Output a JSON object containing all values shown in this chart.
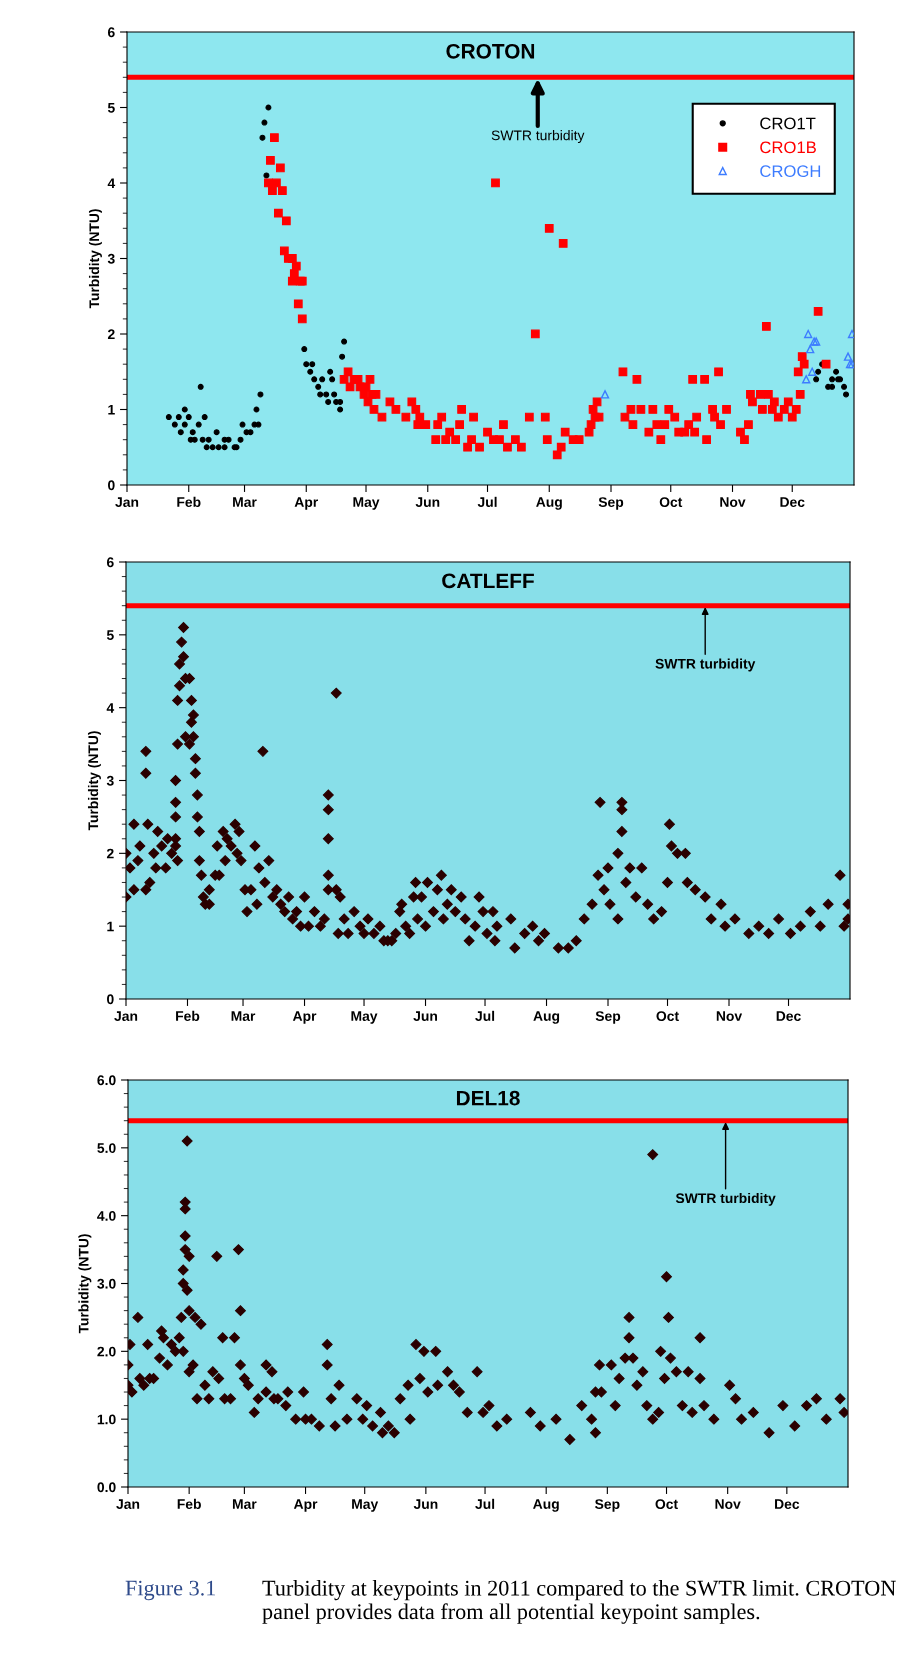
{
  "chart_data": [
    {
      "type": "scatter",
      "title": "CROTON",
      "ylabel": "Turbidity (NTU)",
      "xlim": [
        "2011-01-01",
        "2012-01-01"
      ],
      "xticks": [
        {
          "value": "2011-01-01",
          "label": "Jan"
        },
        {
          "value": "2011-02-01",
          "label": "Feb"
        },
        {
          "value": "2011-03-01",
          "label": "Mar"
        },
        {
          "value": "2011-04-01",
          "label": "Apr"
        },
        {
          "value": "2011-05-01",
          "label": "May"
        },
        {
          "value": "2011-06-01",
          "label": "Jun"
        },
        {
          "value": "2011-07-01",
          "label": "Jul"
        },
        {
          "value": "2011-08-01",
          "label": "Aug"
        },
        {
          "value": "2011-09-01",
          "label": "Sep"
        },
        {
          "value": "2011-10-01",
          "label": "Oct"
        },
        {
          "value": "2011-11-01",
          "label": "Nov"
        },
        {
          "value": "2011-12-01",
          "label": "Dec"
        }
      ],
      "ylim": [
        0,
        6
      ],
      "yticks": [
        0,
        1,
        2,
        3,
        4,
        5,
        6
      ],
      "grid": false,
      "legend": "top right",
      "ref_lines": [
        {
          "axis": "y",
          "value": 5.4,
          "color": "#ff0000",
          "label": "SWTR turbidity"
        }
      ],
      "series": [
        {
          "name": "CRO1T",
          "color": "#000000",
          "marker": "circle",
          "x": [
            "2011-01-22",
            "2011-01-25",
            "2011-01-27",
            "2011-01-28",
            "2011-01-30",
            "2011-01-30",
            "2011-02-01",
            "2011-02-02",
            "2011-02-03",
            "2011-02-04",
            "2011-02-06",
            "2011-02-07",
            "2011-02-08",
            "2011-02-09",
            "2011-02-10",
            "2011-02-11",
            "2011-02-13",
            "2011-02-15",
            "2011-02-16",
            "2011-02-19",
            "2011-02-19",
            "2011-02-21",
            "2011-02-24",
            "2011-02-25",
            "2011-02-27",
            "2011-02-28",
            "2011-03-02",
            "2011-03-04",
            "2011-03-06",
            "2011-03-07",
            "2011-03-08",
            "2011-03-09",
            "2011-03-10",
            "2011-03-11",
            "2011-03-12",
            "2011-03-13",
            "2011-03-31",
            "2011-04-01",
            "2011-04-03",
            "2011-04-04",
            "2011-04-05",
            "2011-04-07",
            "2011-04-08",
            "2011-04-09",
            "2011-04-11",
            "2011-04-12",
            "2011-04-13",
            "2011-04-14",
            "2011-04-15",
            "2011-04-16",
            "2011-04-18",
            "2011-04-18",
            "2011-04-19",
            "2011-04-20",
            "2011-12-13",
            "2011-12-14",
            "2011-12-16",
            "2011-12-19",
            "2011-12-21",
            "2011-12-21",
            "2011-12-23",
            "2011-12-24",
            "2011-12-25",
            "2011-12-27",
            "2011-12-28"
          ],
          "values": [
            0.9,
            0.8,
            0.9,
            0.7,
            1.0,
            0.8,
            0.9,
            0.6,
            0.7,
            0.6,
            0.8,
            1.3,
            0.6,
            0.9,
            0.5,
            0.6,
            0.5,
            0.7,
            0.5,
            0.5,
            0.6,
            0.6,
            0.5,
            0.5,
            0.6,
            0.8,
            0.7,
            0.7,
            0.8,
            1.0,
            0.8,
            1.2,
            4.6,
            4.8,
            4.1,
            5.0,
            1.8,
            1.6,
            1.5,
            1.6,
            1.4,
            1.3,
            1.2,
            1.4,
            1.2,
            1.1,
            1.5,
            1.4,
            1.2,
            1.1,
            1.0,
            1.1,
            1.7,
            1.9,
            1.4,
            1.5,
            1.6,
            1.3,
            1.3,
            1.4,
            1.5,
            1.4,
            1.4,
            1.3,
            1.2
          ]
        },
        {
          "name": "CRO1B",
          "color": "#ff0000",
          "marker": "square",
          "x": [
            "2011-03-13",
            "2011-03-14",
            "2011-03-15",
            "2011-03-16",
            "2011-03-17",
            "2011-03-18",
            "2011-03-19",
            "2011-03-20",
            "2011-03-21",
            "2011-03-22",
            "2011-03-23",
            "2011-03-25",
            "2011-03-25",
            "2011-03-26",
            "2011-03-27",
            "2011-03-28",
            "2011-03-29",
            "2011-03-30",
            "2011-03-30",
            "2011-04-20",
            "2011-04-22",
            "2011-04-23",
            "2011-04-25",
            "2011-04-27",
            "2011-04-28",
            "2011-04-30",
            "2011-05-01",
            "2011-05-02",
            "2011-05-03",
            "2011-05-04",
            "2011-05-05",
            "2011-05-06",
            "2011-05-09",
            "2011-05-13",
            "2011-05-16",
            "2011-05-21",
            "2011-05-24",
            "2011-05-26",
            "2011-05-27",
            "2011-05-28",
            "2011-05-31",
            "2011-06-05",
            "2011-06-06",
            "2011-06-08",
            "2011-06-10",
            "2011-06-12",
            "2011-06-15",
            "2011-06-17",
            "2011-06-18",
            "2011-06-21",
            "2011-06-23",
            "2011-06-24",
            "2011-06-27",
            "2011-07-01",
            "2011-07-04",
            "2011-07-05",
            "2011-07-07",
            "2011-07-09",
            "2011-07-11",
            "2011-07-15",
            "2011-07-18",
            "2011-07-22",
            "2011-07-25",
            "2011-07-30",
            "2011-07-31",
            "2011-08-01",
            "2011-08-05",
            "2011-08-07",
            "2011-08-08",
            "2011-08-09",
            "2011-08-13",
            "2011-08-16",
            "2011-08-21",
            "2011-08-22",
            "2011-08-23",
            "2011-08-24",
            "2011-08-25",
            "2011-08-26",
            "2011-09-07",
            "2011-09-08",
            "2011-09-11",
            "2011-09-12",
            "2011-09-14",
            "2011-09-16",
            "2011-09-20",
            "2011-09-22",
            "2011-09-24",
            "2011-09-26",
            "2011-09-28",
            "2011-09-30",
            "2011-10-03",
            "2011-10-05",
            "2011-10-08",
            "2011-10-10",
            "2011-10-12",
            "2011-10-13",
            "2011-10-14",
            "2011-10-18",
            "2011-10-19",
            "2011-10-22",
            "2011-10-23",
            "2011-10-25",
            "2011-10-26",
            "2011-10-29",
            "2011-11-05",
            "2011-11-07",
            "2011-11-09",
            "2011-11-10",
            "2011-11-11",
            "2011-11-15",
            "2011-11-16",
            "2011-11-18",
            "2011-11-19",
            "2011-11-21",
            "2011-11-22",
            "2011-11-24",
            "2011-11-27",
            "2011-11-29",
            "2011-12-01",
            "2011-12-03",
            "2011-12-04",
            "2011-12-05",
            "2011-12-06",
            "2011-12-07",
            "2011-12-14",
            "2011-12-18"
          ],
          "values": [
            4.0,
            4.3,
            3.9,
            4.6,
            4.0,
            3.6,
            4.2,
            3.9,
            3.1,
            3.5,
            3.0,
            3.0,
            2.7,
            2.8,
            2.9,
            2.4,
            2.7,
            2.7,
            2.2,
            1.4,
            1.5,
            1.3,
            1.4,
            1.4,
            1.3,
            1.2,
            1.3,
            1.1,
            1.4,
            1.2,
            1.0,
            1.2,
            0.9,
            1.1,
            1.0,
            0.9,
            1.1,
            1.0,
            0.8,
            0.9,
            0.8,
            0.6,
            0.8,
            0.9,
            0.6,
            0.7,
            0.6,
            0.8,
            1.0,
            0.5,
            0.6,
            0.9,
            0.5,
            0.7,
            0.6,
            4.0,
            0.6,
            0.8,
            0.5,
            0.6,
            0.5,
            0.9,
            2.0,
            0.9,
            0.6,
            3.4,
            0.4,
            0.5,
            3.2,
            0.7,
            0.6,
            0.6,
            0.7,
            0.8,
            1.0,
            0.9,
            1.1,
            0.9,
            1.5,
            0.9,
            1.0,
            0.8,
            1.4,
            1.0,
            0.7,
            1.0,
            0.8,
            0.6,
            0.8,
            1.0,
            0.9,
            0.7,
            0.7,
            0.8,
            1.4,
            0.7,
            0.9,
            1.4,
            0.6,
            1.0,
            0.9,
            1.5,
            0.8,
            1.0,
            0.7,
            0.6,
            0.8,
            1.2,
            1.1,
            1.2,
            1.0,
            2.1,
            1.2,
            1.0,
            1.1,
            0.9,
            1.0,
            1.1,
            0.9,
            1.0,
            1.5,
            1.2,
            1.7,
            1.6,
            2.3,
            1.6
          ]
        },
        {
          "name": "CROGH",
          "color": "#3d7cff",
          "marker": "triangle",
          "x": [
            "2011-08-29",
            "2011-12-08",
            "2011-12-09",
            "2011-12-10",
            "2011-12-11",
            "2011-12-12",
            "2011-12-13",
            "2011-12-29",
            "2011-12-30",
            "2011-12-31",
            "2011-12-31"
          ],
          "values": [
            1.2,
            1.4,
            2.0,
            1.8,
            1.5,
            1.9,
            1.9,
            1.7,
            1.6,
            1.6,
            2.0
          ]
        }
      ]
    },
    {
      "type": "scatter",
      "title": "CATLEFF",
      "ylabel": "Turbidity (NTU)",
      "xlim": [
        "2011-01-01",
        "2012-01-01"
      ],
      "xticks": [
        {
          "value": "2011-01-01",
          "label": "Jan"
        },
        {
          "value": "2011-02-01",
          "label": "Feb"
        },
        {
          "value": "2011-03-01",
          "label": "Mar"
        },
        {
          "value": "2011-04-01",
          "label": "Apr"
        },
        {
          "value": "2011-05-01",
          "label": "May"
        },
        {
          "value": "2011-06-01",
          "label": "Jun"
        },
        {
          "value": "2011-07-01",
          "label": "Jul"
        },
        {
          "value": "2011-08-01",
          "label": "Aug"
        },
        {
          "value": "2011-09-01",
          "label": "Sep"
        },
        {
          "value": "2011-10-01",
          "label": "Oct"
        },
        {
          "value": "2011-11-01",
          "label": "Nov"
        },
        {
          "value": "2011-12-01",
          "label": "Dec"
        }
      ],
      "ylim": [
        0,
        6
      ],
      "yticks": [
        0,
        1,
        2,
        3,
        4,
        5,
        6
      ],
      "grid": false,
      "marker": "diamond",
      "ref_lines": [
        {
          "axis": "y",
          "value": 5.4,
          "color": "#ff0000",
          "label": "SWTR turbidity"
        }
      ],
      "series": [
        {
          "color": "#2a0000",
          "x": [
            "2011-01-01",
            "2011-01-01",
            "2011-01-03",
            "2011-01-05",
            "2011-01-05",
            "2011-01-07",
            "2011-01-08",
            "2011-01-11",
            "2011-01-11",
            "2011-01-11",
            "2011-01-12",
            "2011-01-13",
            "2011-01-15",
            "2011-01-16",
            "2011-01-17",
            "2011-01-19",
            "2011-01-21",
            "2011-01-22",
            "2011-01-24",
            "2011-01-26",
            "2011-01-27",
            "2011-01-26",
            "2011-01-26",
            "2011-01-26",
            "2011-01-26",
            "2011-01-27",
            "2011-01-27",
            "2011-01-28",
            "2011-01-28",
            "2011-01-29",
            "2011-01-30",
            "2011-01-30",
            "2011-01-31",
            "2011-01-31",
            "2011-02-02",
            "2011-02-02",
            "2011-02-03",
            "2011-02-03",
            "2011-02-04",
            "2011-02-04",
            "2011-02-05",
            "2011-02-05",
            "2011-02-06",
            "2011-02-06",
            "2011-02-07",
            "2011-02-07",
            "2011-02-08",
            "2011-02-09",
            "2011-02-10",
            "2011-02-12",
            "2011-02-12",
            "2011-02-15",
            "2011-02-16",
            "2011-02-17",
            "2011-02-19",
            "2011-02-20",
            "2011-02-21",
            "2011-02-23",
            "2011-02-25",
            "2011-02-26",
            "2011-02-27",
            "2011-02-28",
            "2011-03-02",
            "2011-03-03",
            "2011-03-05",
            "2011-03-07",
            "2011-03-08",
            "2011-03-09",
            "2011-03-11",
            "2011-03-12",
            "2011-03-14",
            "2011-03-16",
            "2011-03-18",
            "2011-03-20",
            "2011-03-22",
            "2011-03-24",
            "2011-03-26",
            "2011-03-28",
            "2011-03-30",
            "2011-04-01",
            "2011-04-03",
            "2011-04-06",
            "2011-04-09",
            "2011-04-11",
            "2011-04-13",
            "2011-04-13",
            "2011-04-13",
            "2011-04-13",
            "2011-04-13",
            "2011-04-17",
            "2011-04-17",
            "2011-04-18",
            "2011-04-19",
            "2011-04-21",
            "2011-04-23",
            "2011-04-26",
            "2011-04-29",
            "2011-05-01",
            "2011-05-03",
            "2011-05-06",
            "2011-05-09",
            "2011-05-11",
            "2011-05-13",
            "2011-05-15",
            "2011-05-17",
            "2011-05-19",
            "2011-05-20",
            "2011-05-22",
            "2011-05-24",
            "2011-05-26",
            "2011-05-27",
            "2011-05-28",
            "2011-05-30",
            "2011-06-01",
            "2011-06-02",
            "2011-06-05",
            "2011-06-07",
            "2011-06-09",
            "2011-06-10",
            "2011-06-12",
            "2011-06-14",
            "2011-06-16",
            "2011-06-19",
            "2011-06-21",
            "2011-06-23",
            "2011-06-26",
            "2011-06-28",
            "2011-06-30",
            "2011-07-02",
            "2011-07-05",
            "2011-07-06",
            "2011-07-07",
            "2011-07-14",
            "2011-07-16",
            "2011-07-21",
            "2011-07-25",
            "2011-07-28",
            "2011-07-31",
            "2011-08-07",
            "2011-08-12",
            "2011-08-16",
            "2011-08-20",
            "2011-08-24",
            "2011-08-27",
            "2011-08-28",
            "2011-08-30",
            "2011-09-01",
            "2011-09-02",
            "2011-09-06",
            "2011-09-06",
            "2011-09-08",
            "2011-09-08",
            "2011-09-08",
            "2011-09-10",
            "2011-09-12",
            "2011-09-15",
            "2011-09-18",
            "2011-09-21",
            "2011-09-24",
            "2011-09-28",
            "2011-10-01",
            "2011-10-02",
            "2011-10-03",
            "2011-10-06",
            "2011-10-10",
            "2011-10-11",
            "2011-10-15",
            "2011-10-20",
            "2011-10-23",
            "2011-10-28",
            "2011-10-30",
            "2011-11-04",
            "2011-11-11",
            "2011-11-16",
            "2011-11-21",
            "2011-11-26",
            "2011-12-02",
            "2011-12-07",
            "2011-12-12",
            "2011-12-17",
            "2011-12-21",
            "2011-12-27",
            "2011-12-29",
            "2011-12-31",
            "2011-12-31"
          ],
          "values": [
            2.0,
            1.4,
            1.8,
            2.4,
            1.5,
            1.9,
            2.1,
            3.4,
            3.1,
            1.5,
            2.4,
            1.6,
            2.0,
            1.8,
            2.3,
            2.1,
            1.8,
            2.2,
            2.0,
            2.1,
            1.9,
            2.2,
            2.5,
            2.7,
            3.0,
            3.5,
            4.1,
            4.3,
            4.6,
            4.9,
            5.1,
            4.7,
            4.4,
            3.6,
            4.4,
            3.5,
            4.1,
            3.8,
            3.9,
            3.6,
            3.3,
            3.1,
            2.8,
            2.5,
            2.3,
            1.9,
            1.7,
            1.4,
            1.3,
            1.5,
            1.3,
            1.7,
            2.1,
            1.7,
            2.3,
            1.9,
            2.2,
            2.1,
            2.4,
            2.0,
            2.3,
            1.9,
            1.5,
            1.2,
            1.5,
            2.1,
            1.3,
            1.8,
            3.4,
            1.6,
            1.9,
            1.4,
            1.5,
            1.3,
            1.2,
            1.4,
            1.1,
            1.2,
            1.0,
            1.4,
            1.0,
            1.2,
            1.0,
            1.1,
            2.8,
            2.6,
            2.2,
            1.7,
            1.5,
            4.2,
            1.5,
            0.9,
            1.4,
            1.1,
            0.9,
            1.2,
            1.0,
            0.9,
            1.1,
            0.9,
            1.0,
            0.8,
            0.8,
            0.8,
            0.9,
            1.2,
            1.3,
            1.0,
            0.9,
            1.4,
            1.6,
            1.1,
            1.4,
            1.0,
            1.6,
            1.2,
            1.5,
            1.7,
            1.1,
            1.3,
            1.5,
            1.2,
            1.4,
            1.1,
            0.8,
            1.0,
            1.4,
            1.2,
            0.9,
            1.2,
            0.8,
            1.0,
            1.1,
            0.7,
            0.9,
            1.0,
            0.8,
            0.9,
            0.7,
            0.7,
            0.8,
            1.1,
            1.3,
            1.7,
            2.7,
            1.5,
            1.8,
            1.3,
            2.0,
            1.1,
            2.7,
            2.6,
            2.3,
            1.6,
            1.8,
            1.4,
            1.8,
            1.3,
            1.1,
            1.2,
            1.6,
            2.4,
            2.1,
            2.0,
            2.0,
            1.6,
            1.5,
            1.4,
            1.1,
            1.3,
            1.0,
            1.1,
            0.9,
            1.0,
            0.9,
            1.1,
            0.9,
            1.0,
            1.2,
            1.0,
            1.3,
            1.7,
            1.0,
            1.3,
            1.1
          ]
        }
      ]
    },
    {
      "type": "scatter",
      "title": "DEL18",
      "ylabel": "Turbidity (NTU)",
      "xlim": [
        "2011-01-01",
        "2012-01-01"
      ],
      "xticks": [
        {
          "value": "2011-01-01",
          "label": "Jan"
        },
        {
          "value": "2011-02-01",
          "label": "Feb"
        },
        {
          "value": "2011-03-01",
          "label": "Mar"
        },
        {
          "value": "2011-04-01",
          "label": "Apr"
        },
        {
          "value": "2011-05-01",
          "label": "May"
        },
        {
          "value": "2011-06-01",
          "label": "Jun"
        },
        {
          "value": "2011-07-01",
          "label": "Jul"
        },
        {
          "value": "2011-08-01",
          "label": "Aug"
        },
        {
          "value": "2011-09-01",
          "label": "Sep"
        },
        {
          "value": "2011-10-01",
          "label": "Oct"
        },
        {
          "value": "2011-11-01",
          "label": "Nov"
        },
        {
          "value": "2011-12-01",
          "label": "Dec"
        }
      ],
      "ylim": [
        0,
        6
      ],
      "yticks": [
        {
          "value": 0,
          "label": "0.0"
        },
        {
          "value": 1,
          "label": "1.0"
        },
        {
          "value": 2,
          "label": "2.0"
        },
        {
          "value": 3,
          "label": "3.0"
        },
        {
          "value": 4,
          "label": "4.0"
        },
        {
          "value": 5,
          "label": "5.0"
        },
        {
          "value": 6,
          "label": "6.0"
        }
      ],
      "grid": false,
      "marker": "diamond",
      "ref_lines": [
        {
          "axis": "y",
          "value": 5.4,
          "color": "#ff0000",
          "label": "SWTR turbidity"
        }
      ],
      "annotations": [
        "Figure 3.1",
        "Turbidity at keypoints in 2011 compared to the SWTR limit. CROTON panel provides data from all potential keypoint samples."
      ],
      "series": [
        {
          "color": "#2a0000",
          "x": [
            "2011-01-01",
            "2011-01-01",
            "2011-01-02",
            "2011-01-03",
            "2011-01-06",
            "2011-01-07",
            "2011-01-09",
            "2011-01-11",
            "2011-01-12",
            "2011-01-14",
            "2011-01-17",
            "2011-01-18",
            "2011-01-19",
            "2011-01-21",
            "2011-01-23",
            "2011-01-25",
            "2011-01-27",
            "2011-01-28",
            "2011-01-29",
            "2011-01-29",
            "2011-01-29",
            "2011-01-30",
            "2011-01-30",
            "2011-01-30",
            "2011-01-30",
            "2011-01-31",
            "2011-01-31",
            "2011-02-01",
            "2011-02-01",
            "2011-02-01",
            "2011-02-03",
            "2011-02-04",
            "2011-02-05",
            "2011-02-07",
            "2011-02-09",
            "2011-02-11",
            "2011-02-13",
            "2011-02-15",
            "2011-02-16",
            "2011-02-18",
            "2011-02-19",
            "2011-02-22",
            "2011-02-24",
            "2011-02-26",
            "2011-02-27",
            "2011-02-27",
            "2011-03-01",
            "2011-03-03",
            "2011-03-06",
            "2011-03-08",
            "2011-03-12",
            "2011-03-12",
            "2011-03-15",
            "2011-03-16",
            "2011-03-18",
            "2011-03-22",
            "2011-03-23",
            "2011-03-27",
            "2011-03-31",
            "2011-04-01",
            "2011-04-04",
            "2011-04-08",
            "2011-04-12",
            "2011-04-12",
            "2011-04-14",
            "2011-04-16",
            "2011-04-18",
            "2011-04-22",
            "2011-04-27",
            "2011-04-30",
            "2011-05-02",
            "2011-05-05",
            "2011-05-09",
            "2011-05-10",
            "2011-05-13",
            "2011-05-16",
            "2011-05-19",
            "2011-05-23",
            "2011-05-24",
            "2011-05-27",
            "2011-05-29",
            "2011-05-31",
            "2011-06-02",
            "2011-06-06",
            "2011-06-07",
            "2011-06-12",
            "2011-06-15",
            "2011-06-18",
            "2011-06-22",
            "2011-06-27",
            "2011-06-30",
            "2011-07-03",
            "2011-07-07",
            "2011-07-12",
            "2011-07-24",
            "2011-07-29",
            "2011-08-06",
            "2011-08-13",
            "2011-08-19",
            "2011-08-24",
            "2011-08-26",
            "2011-08-26",
            "2011-08-28",
            "2011-08-29",
            "2011-09-03",
            "2011-09-05",
            "2011-09-07",
            "2011-09-10",
            "2011-09-12",
            "2011-09-12",
            "2011-09-14",
            "2011-09-16",
            "2011-09-19",
            "2011-09-21",
            "2011-09-24",
            "2011-09-24",
            "2011-09-27",
            "2011-09-28",
            "2011-09-30",
            "2011-10-01",
            "2011-10-02",
            "2011-10-03",
            "2011-10-06",
            "2011-10-09",
            "2011-10-12",
            "2011-10-14",
            "2011-10-18",
            "2011-10-18",
            "2011-10-20",
            "2011-10-25",
            "2011-11-02",
            "2011-11-05",
            "2011-11-08",
            "2011-11-14",
            "2011-11-22",
            "2011-11-29",
            "2011-12-05",
            "2011-12-11",
            "2011-12-16",
            "2011-12-21",
            "2011-12-28",
            "2011-12-30"
          ],
          "values": [
            1.8,
            1.5,
            2.1,
            1.4,
            2.5,
            1.6,
            1.5,
            2.1,
            1.6,
            1.6,
            1.9,
            2.3,
            2.2,
            1.8,
            2.1,
            2.0,
            2.2,
            2.5,
            3.2,
            3.0,
            2.0,
            4.1,
            3.7,
            3.5,
            4.2,
            5.1,
            2.9,
            3.4,
            2.6,
            1.7,
            1.8,
            2.5,
            1.3,
            2.4,
            1.5,
            1.3,
            1.7,
            3.4,
            1.6,
            2.2,
            1.3,
            1.3,
            2.2,
            3.5,
            2.6,
            1.8,
            1.6,
            1.5,
            1.1,
            1.3,
            1.8,
            1.4,
            1.7,
            1.3,
            1.3,
            1.2,
            1.4,
            1.0,
            1.4,
            1.0,
            1.0,
            0.9,
            2.1,
            1.8,
            1.3,
            0.9,
            1.5,
            1.0,
            1.3,
            1.0,
            1.2,
            0.9,
            1.1,
            0.8,
            0.9,
            0.8,
            1.3,
            1.5,
            1.0,
            2.1,
            1.6,
            2.0,
            1.4,
            2.0,
            1.5,
            1.7,
            1.5,
            1.4,
            1.1,
            1.7,
            1.1,
            1.2,
            0.9,
            1.0,
            1.1,
            0.9,
            1.0,
            0.7,
            1.2,
            1.0,
            0.8,
            1.4,
            1.8,
            1.4,
            1.8,
            1.2,
            1.6,
            1.9,
            2.5,
            2.2,
            1.9,
            1.5,
            1.7,
            1.2,
            1.0,
            4.9,
            1.1,
            2.0,
            1.6,
            3.1,
            2.5,
            1.9,
            1.7,
            1.2,
            1.7,
            1.1,
            2.2,
            1.6,
            1.2,
            1.0,
            1.5,
            1.3,
            1.0,
            1.1,
            0.8,
            1.2,
            0.9,
            1.2,
            1.3,
            1.0,
            1.3,
            1.1
          ]
        }
      ]
    }
  ]
}
